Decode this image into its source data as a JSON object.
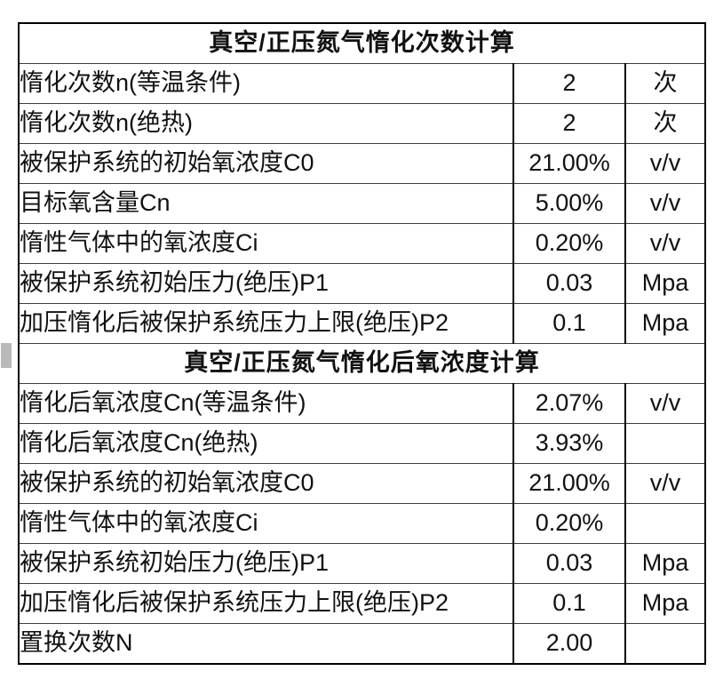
{
  "colors": {
    "result_orange": "#FFC000",
    "input_blue": "#BDD7EE",
    "cell_white": "#FFFFFF",
    "border_black": "#000000",
    "marker_gray": "#B9B9B9"
  },
  "table": {
    "sections": [
      {
        "title": "真空/正压氮气惰化次数计算",
        "rows": [
          {
            "label": "惰化次数n(等温条件)",
            "value": "2",
            "unit": "次",
            "style": "orange"
          },
          {
            "label": "惰化次数n(绝热)",
            "value": "2",
            "unit": "次",
            "style": "orange"
          },
          {
            "label": "被保护系统的初始氧浓度C0",
            "value": "21.00%",
            "unit": "v/v",
            "style": "blue"
          },
          {
            "label": "目标氧含量Cn",
            "value": "5.00%",
            "unit": "v/v",
            "style": "blue"
          },
          {
            "label": "惰性气体中的氧浓度Ci",
            "value": "0.20%",
            "unit": "v/v",
            "style": "blue"
          },
          {
            "label": "被保护系统初始压力(绝压)P1",
            "value": "0.03",
            "unit": "Mpa",
            "style": "blue"
          },
          {
            "label": "加压惰化后被保护系统压力上限(绝压)P2",
            "value": "0.1",
            "unit": "Mpa",
            "style": "blue"
          }
        ]
      },
      {
        "title": "真空/正压氮气惰化后氧浓度计算",
        "rows": [
          {
            "label": "惰化后氧浓度Cn(等温条件)",
            "value": "2.07%",
            "unit": "v/v",
            "style": "orange"
          },
          {
            "label": "惰化后氧浓度Cn(绝热)",
            "value": "3.93%",
            "unit": "",
            "style": "orange"
          },
          {
            "label": "被保护系统的初始氧浓度C0",
            "value": "21.00%",
            "unit": "v/v",
            "style": "blue"
          },
          {
            "label": "惰性气体中的氧浓度Ci",
            "value": "0.20%",
            "unit": "",
            "style": "blue"
          },
          {
            "label": "被保护系统初始压力(绝压)P1",
            "value": "0.03",
            "unit": "Mpa",
            "style": "blue"
          },
          {
            "label": "加压惰化后被保护系统压力上限(绝压)P2",
            "value": "0.1",
            "unit": "Mpa",
            "style": "blue"
          },
          {
            "label": "置换次数N",
            "value": "2.00",
            "unit": "",
            "style": "blue"
          }
        ]
      }
    ]
  }
}
